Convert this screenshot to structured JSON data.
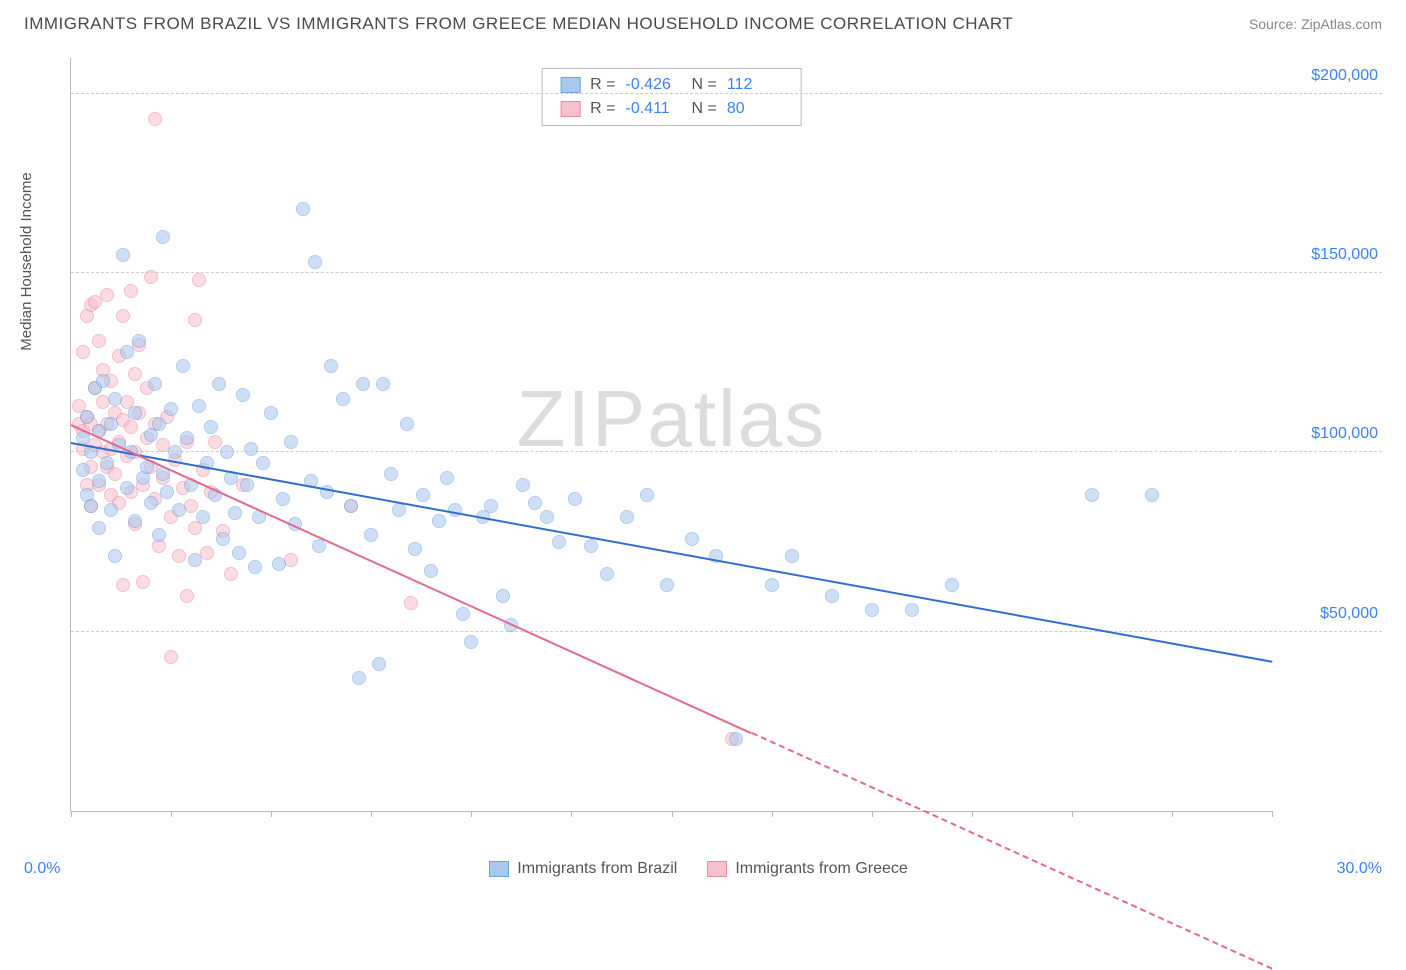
{
  "title": "IMMIGRANTS FROM BRAZIL VS IMMIGRANTS FROM GREECE MEDIAN HOUSEHOLD INCOME CORRELATION CHART",
  "source_label": "Source:",
  "source_name": "ZipAtlas.com",
  "ylabel": "Median Household Income",
  "watermark_a": "ZIP",
  "watermark_b": "atlas",
  "chart": {
    "type": "scatter",
    "xlim": [
      0,
      30
    ],
    "ylim": [
      0,
      210000
    ],
    "x_min_label": "0.0%",
    "x_max_label": "30.0%",
    "x_ticks": [
      0,
      2.5,
      5,
      7.5,
      10,
      12.5,
      15,
      17.5,
      20,
      22.5,
      25,
      27.5,
      30
    ],
    "y_gridlines": [
      50000,
      100000,
      150000,
      200000
    ],
    "y_tick_labels": [
      "$50,000",
      "$100,000",
      "$150,000",
      "$200,000"
    ],
    "background_color": "#ffffff",
    "grid_color": "#cccccc",
    "axis_color": "#bbbbbb",
    "tick_label_color": "#3b82f6",
    "marker_radius": 7,
    "marker_opacity": 0.55,
    "series": [
      {
        "name": "Immigrants from Brazil",
        "color_fill": "#a8c8f0",
        "color_stroke": "#6fa3e0",
        "trend_color": "#2f6fd0",
        "R": "-0.426",
        "N": "112",
        "trend": {
          "x1": 0,
          "y1": 103000,
          "x2": 30,
          "y2": 42000,
          "extrapolate_from_x": 30
        },
        "points": [
          [
            0.3,
            95000
          ],
          [
            0.3,
            104000
          ],
          [
            0.4,
            110000
          ],
          [
            0.4,
            88000
          ],
          [
            0.5,
            100000
          ],
          [
            0.5,
            85000
          ],
          [
            0.6,
            118000
          ],
          [
            0.7,
            92000
          ],
          [
            0.7,
            106000
          ],
          [
            0.7,
            79000
          ],
          [
            0.8,
            120000
          ],
          [
            0.9,
            97000
          ],
          [
            1.0,
            84000
          ],
          [
            1.0,
            108000
          ],
          [
            1.1,
            71000
          ],
          [
            1.1,
            115000
          ],
          [
            1.2,
            102000
          ],
          [
            1.3,
            155000
          ],
          [
            1.4,
            90000
          ],
          [
            1.4,
            128000
          ],
          [
            1.5,
            100000
          ],
          [
            1.6,
            81000
          ],
          [
            1.6,
            111000
          ],
          [
            1.7,
            131000
          ],
          [
            1.8,
            93000
          ],
          [
            1.9,
            96000
          ],
          [
            2.0,
            86000
          ],
          [
            2.0,
            105000
          ],
          [
            2.1,
            119000
          ],
          [
            2.2,
            108000
          ],
          [
            2.2,
            77000
          ],
          [
            2.3,
            94000
          ],
          [
            2.3,
            160000
          ],
          [
            2.4,
            89000
          ],
          [
            2.5,
            112000
          ],
          [
            2.6,
            100000
          ],
          [
            2.7,
            84000
          ],
          [
            2.8,
            124000
          ],
          [
            2.9,
            104000
          ],
          [
            3.0,
            91000
          ],
          [
            3.1,
            70000
          ],
          [
            3.2,
            113000
          ],
          [
            3.3,
            82000
          ],
          [
            3.4,
            97000
          ],
          [
            3.5,
            107000
          ],
          [
            3.6,
            88000
          ],
          [
            3.7,
            119000
          ],
          [
            3.8,
            76000
          ],
          [
            3.9,
            100000
          ],
          [
            4.0,
            93000
          ],
          [
            4.1,
            83000
          ],
          [
            4.2,
            72000
          ],
          [
            4.3,
            116000
          ],
          [
            4.4,
            91000
          ],
          [
            4.5,
            101000
          ],
          [
            4.6,
            68000
          ],
          [
            4.7,
            82000
          ],
          [
            4.8,
            97000
          ],
          [
            5.0,
            111000
          ],
          [
            5.2,
            69000
          ],
          [
            5.3,
            87000
          ],
          [
            5.5,
            103000
          ],
          [
            5.6,
            80000
          ],
          [
            5.8,
            168000
          ],
          [
            6.0,
            92000
          ],
          [
            6.1,
            153000
          ],
          [
            6.2,
            74000
          ],
          [
            6.4,
            89000
          ],
          [
            6.5,
            124000
          ],
          [
            6.8,
            115000
          ],
          [
            7.0,
            85000
          ],
          [
            7.2,
            37000
          ],
          [
            7.3,
            119000
          ],
          [
            7.5,
            77000
          ],
          [
            7.7,
            41000
          ],
          [
            7.8,
            119000
          ],
          [
            8.0,
            94000
          ],
          [
            8.2,
            84000
          ],
          [
            8.4,
            108000
          ],
          [
            8.6,
            73000
          ],
          [
            8.8,
            88000
          ],
          [
            9.0,
            67000
          ],
          [
            9.2,
            81000
          ],
          [
            9.4,
            93000
          ],
          [
            9.6,
            84000
          ],
          [
            9.8,
            55000
          ],
          [
            10.0,
            47000
          ],
          [
            10.3,
            82000
          ],
          [
            10.5,
            85000
          ],
          [
            10.8,
            60000
          ],
          [
            11.0,
            52000
          ],
          [
            11.3,
            91000
          ],
          [
            11.6,
            86000
          ],
          [
            11.9,
            82000
          ],
          [
            12.2,
            75000
          ],
          [
            12.6,
            87000
          ],
          [
            13.0,
            74000
          ],
          [
            13.4,
            66000
          ],
          [
            13.9,
            82000
          ],
          [
            14.4,
            88000
          ],
          [
            14.9,
            63000
          ],
          [
            15.5,
            76000
          ],
          [
            16.1,
            71000
          ],
          [
            16.6,
            20000
          ],
          [
            17.5,
            63000
          ],
          [
            18.0,
            71000
          ],
          [
            19.0,
            60000
          ],
          [
            20.0,
            56000
          ],
          [
            21.0,
            56000
          ],
          [
            22.0,
            63000
          ],
          [
            25.5,
            88000
          ],
          [
            27.0,
            88000
          ]
        ]
      },
      {
        "name": "Immigrants from Greece",
        "color_fill": "#f6c0cc",
        "color_stroke": "#e98ba2",
        "trend_color": "#e26a8b",
        "R": "-0.411",
        "N": "80",
        "trend": {
          "x1": 0,
          "y1": 108000,
          "x2": 17,
          "y2": 22000,
          "extrapolate_from_x": 17
        },
        "points": [
          [
            0.2,
            108000
          ],
          [
            0.2,
            113000
          ],
          [
            0.3,
            106000
          ],
          [
            0.3,
            128000
          ],
          [
            0.3,
            101000
          ],
          [
            0.4,
            138000
          ],
          [
            0.4,
            91000
          ],
          [
            0.4,
            110000
          ],
          [
            0.5,
            141000
          ],
          [
            0.5,
            96000
          ],
          [
            0.5,
            108000
          ],
          [
            0.5,
            85000
          ],
          [
            0.6,
            142000
          ],
          [
            0.6,
            102000
          ],
          [
            0.6,
            118000
          ],
          [
            0.7,
            106000
          ],
          [
            0.7,
            131000
          ],
          [
            0.7,
            91000
          ],
          [
            0.8,
            114000
          ],
          [
            0.8,
            100000
          ],
          [
            0.8,
            123000
          ],
          [
            0.9,
            144000
          ],
          [
            0.9,
            96000
          ],
          [
            0.9,
            108000
          ],
          [
            1.0,
            88000
          ],
          [
            1.0,
            120000
          ],
          [
            1.0,
            101000
          ],
          [
            1.1,
            111000
          ],
          [
            1.1,
            94000
          ],
          [
            1.2,
            127000
          ],
          [
            1.2,
            103000
          ],
          [
            1.2,
            86000
          ],
          [
            1.3,
            109000
          ],
          [
            1.3,
            138000
          ],
          [
            1.3,
            63000
          ],
          [
            1.4,
            99000
          ],
          [
            1.4,
            114000
          ],
          [
            1.5,
            89000
          ],
          [
            1.5,
            107000
          ],
          [
            1.5,
            145000
          ],
          [
            1.6,
            122000
          ],
          [
            1.6,
            80000
          ],
          [
            1.6,
            100000
          ],
          [
            1.7,
            111000
          ],
          [
            1.7,
            130000
          ],
          [
            1.8,
            91000
          ],
          [
            1.8,
            64000
          ],
          [
            1.9,
            104000
          ],
          [
            1.9,
            118000
          ],
          [
            2.0,
            149000
          ],
          [
            2.0,
            96000
          ],
          [
            2.1,
            87000
          ],
          [
            2.1,
            108000
          ],
          [
            2.1,
            193000
          ],
          [
            2.2,
            74000
          ],
          [
            2.3,
            102000
          ],
          [
            2.3,
            93000
          ],
          [
            2.4,
            110000
          ],
          [
            2.5,
            82000
          ],
          [
            2.5,
            43000
          ],
          [
            2.6,
            98000
          ],
          [
            2.7,
            71000
          ],
          [
            2.8,
            90000
          ],
          [
            2.9,
            60000
          ],
          [
            2.9,
            103000
          ],
          [
            3.0,
            85000
          ],
          [
            3.1,
            137000
          ],
          [
            3.1,
            79000
          ],
          [
            3.2,
            148000
          ],
          [
            3.3,
            95000
          ],
          [
            3.4,
            72000
          ],
          [
            3.5,
            89000
          ],
          [
            3.6,
            103000
          ],
          [
            3.8,
            78000
          ],
          [
            4.0,
            66000
          ],
          [
            4.3,
            91000
          ],
          [
            5.5,
            70000
          ],
          [
            7.0,
            85000
          ],
          [
            8.5,
            58000
          ],
          [
            16.5,
            20000
          ]
        ]
      }
    ]
  },
  "legend": {
    "series1": "Immigrants from Brazil",
    "series2": "Immigrants from Greece"
  },
  "stats_labels": {
    "R": "R =",
    "N": "N ="
  }
}
